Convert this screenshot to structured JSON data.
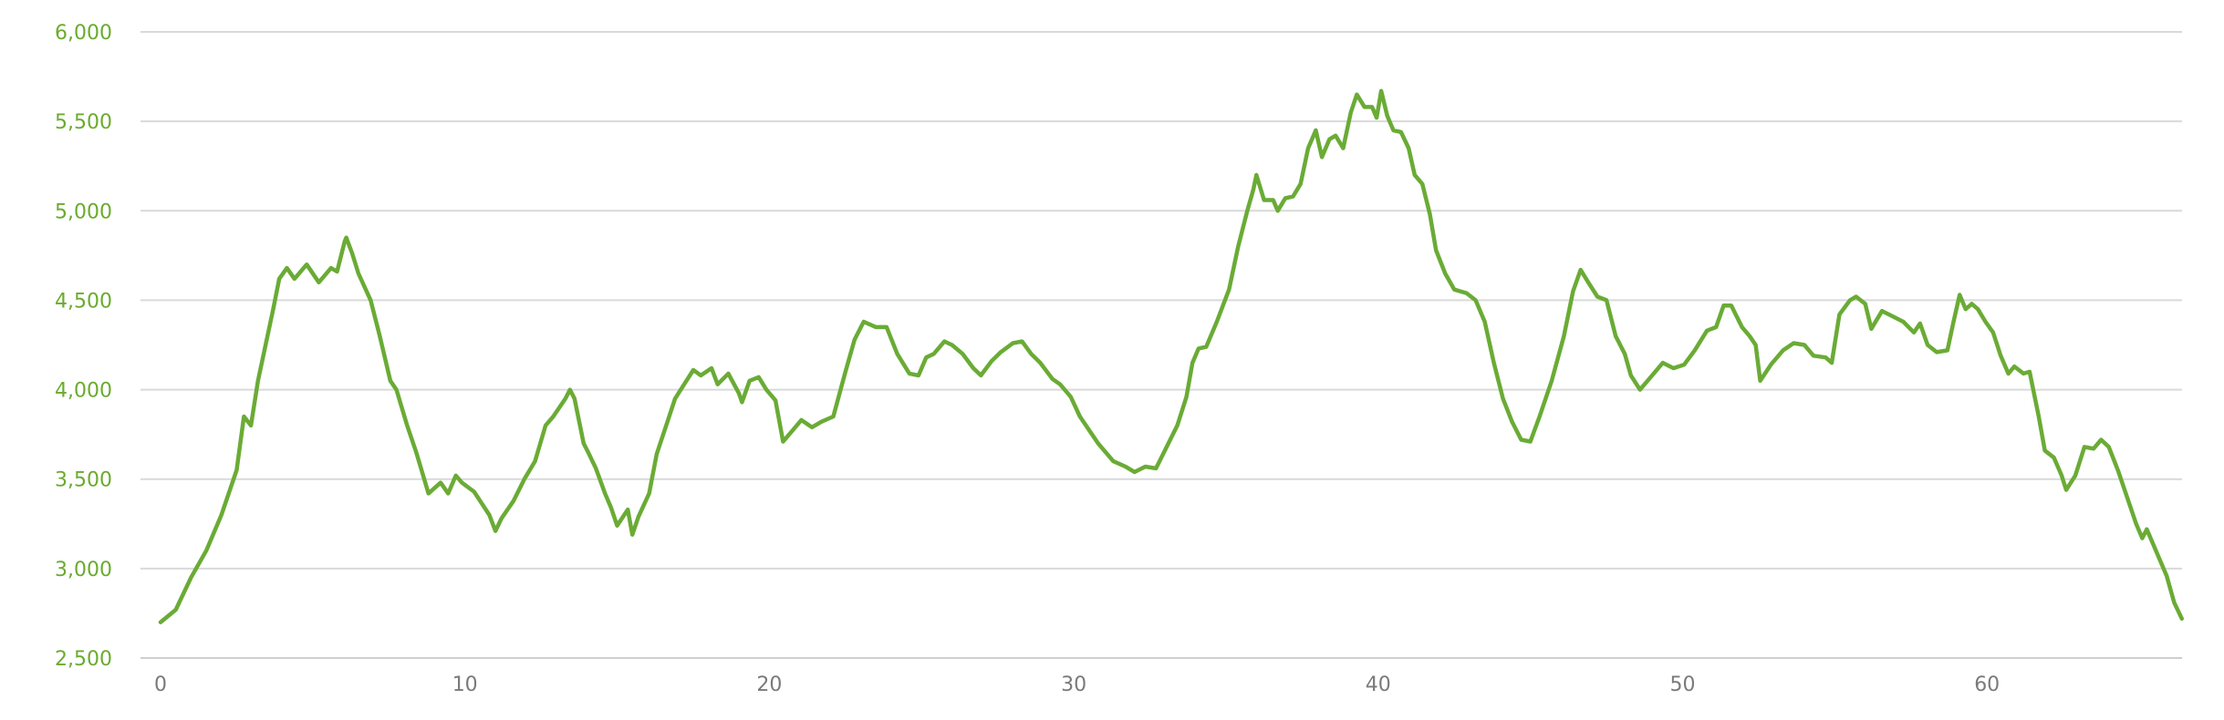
{
  "chart_data": {
    "type": "line",
    "title": "",
    "xlabel": "",
    "ylabel": "",
    "xlim": [
      0,
      66.4
    ],
    "ylim": [
      2500,
      6000
    ],
    "x_ticks": [
      0,
      10,
      20,
      30,
      40,
      50,
      60
    ],
    "x_tick_labels": [
      "0",
      "10",
      "20",
      "30",
      "40",
      "50",
      "60"
    ],
    "y_ticks": [
      2500,
      3000,
      3500,
      4000,
      4500,
      5000,
      5500,
      6000
    ],
    "y_tick_labels": [
      "2,500",
      "3,000",
      "3,500",
      "4,000",
      "4,500",
      "5,000",
      "5,500",
      "6,000"
    ],
    "grid": true,
    "legend": "none",
    "colors": {
      "line": "#6aab35",
      "y_labels": "#6aab2e",
      "x_labels": "#7a7a7a",
      "grid": "#d9d9d9"
    },
    "series": [
      {
        "x": [
          0,
          0.5,
          1,
          1.5,
          2,
          2.5,
          2.74,
          2.97,
          3.2,
          3.7,
          3.9,
          4.15,
          4.4,
          4.8,
          5.2,
          5.6,
          5.8,
          6.05,
          6.1,
          6.3,
          6.5,
          6.9,
          7.2,
          7.55,
          7.75,
          8.1,
          8.4,
          8.8,
          9.2,
          9.45,
          9.7,
          9.9,
          10.3,
          10.8,
          11,
          11.2,
          11.6,
          11.95,
          12.3,
          12.65,
          12.9,
          13.3,
          13.45,
          13.6,
          13.9,
          14.05,
          14.3,
          14.6,
          14.8,
          15,
          15.35,
          15.5,
          15.7,
          16.05,
          16.3,
          16.65,
          16.9,
          17.2,
          17.5,
          17.75,
          18.1,
          18.3,
          18.65,
          19,
          19.1,
          19.35,
          19.65,
          19.9,
          20.2,
          20.45,
          20.8,
          21.05,
          21.4,
          21.7,
          22.1,
          22.5,
          22.8,
          23.1,
          23.5,
          23.85,
          24.2,
          24.6,
          24.9,
          25.15,
          25.4,
          25.75,
          26,
          26.35,
          26.7,
          26.95,
          27.3,
          27.6,
          28,
          28.3,
          28.6,
          28.9,
          29.3,
          29.55,
          29.9,
          30.2,
          30.6,
          30.8,
          31.05,
          31.3,
          31.7,
          32,
          32.35,
          32.7,
          33.05,
          33.4,
          33.7,
          33.9,
          34.1,
          34.35,
          34.7,
          35.1,
          35.4,
          35.7,
          35.9,
          36,
          36.25,
          36.55,
          36.7,
          36.95,
          37.2,
          37.45,
          37.7,
          37.95,
          38.15,
          38.4,
          38.6,
          38.85,
          39.1,
          39.3,
          39.55,
          39.8,
          39.95,
          40.1,
          40.3,
          40.5,
          40.75,
          41,
          41.2,
          41.45,
          41.7,
          41.9,
          42.2,
          42.5,
          42.9,
          43.2,
          43.5,
          43.8,
          44.1,
          44.4,
          44.7,
          45,
          45.3,
          45.7,
          46.1,
          46.4,
          46.65,
          46.9,
          47.2,
          47.5,
          47.8,
          48.1,
          48.3,
          48.6,
          49,
          49.35,
          49.7,
          50.05,
          50.4,
          50.8,
          51.1,
          51.35,
          51.6,
          51.95,
          52.2,
          52.4,
          52.55,
          52.9,
          53.3,
          53.65,
          54,
          54.3,
          54.7,
          54.9,
          55.15,
          55.5,
          55.7,
          56,
          56.2,
          56.55,
          56.9,
          57.25,
          57.6,
          57.8,
          58.05,
          58.35,
          58.7,
          58.9,
          59.1,
          59.3,
          59.5,
          59.7,
          59.95,
          60.2,
          60.45,
          60.7,
          60.9,
          61.2,
          61.4,
          61.7,
          61.9,
          62.2,
          62.45,
          62.6,
          62.9,
          63.2,
          63.5,
          63.75,
          64,
          64.3,
          64.6,
          64.9,
          65.1,
          65.25,
          65.6,
          65.9,
          66.15,
          66.4
        ],
        "y": [
          2700,
          2770,
          2950,
          3100,
          3300,
          3550,
          3850,
          3800,
          4050,
          4450,
          4620,
          4680,
          4620,
          4700,
          4600,
          4680,
          4660,
          4830,
          4850,
          4760,
          4650,
          4500,
          4300,
          4050,
          4000,
          3800,
          3650,
          3420,
          3480,
          3420,
          3520,
          3480,
          3430,
          3300,
          3210,
          3280,
          3380,
          3500,
          3600,
          3800,
          3850,
          3950,
          4000,
          3950,
          3700,
          3650,
          3560,
          3420,
          3340,
          3240,
          3330,
          3190,
          3290,
          3420,
          3640,
          3820,
          3950,
          4030,
          4110,
          4080,
          4120,
          4030,
          4090,
          3980,
          3930,
          4050,
          4070,
          4000,
          3940,
          3710,
          3780,
          3830,
          3790,
          3820,
          3850,
          4100,
          4280,
          4380,
          4350,
          4350,
          4200,
          4090,
          4080,
          4180,
          4200,
          4270,
          4250,
          4200,
          4120,
          4080,
          4160,
          4210,
          4260,
          4270,
          4200,
          4150,
          4060,
          4030,
          3960,
          3850,
          3750,
          3700,
          3650,
          3600,
          3570,
          3540,
          3570,
          3560,
          3680,
          3800,
          3960,
          4150,
          4230,
          4240,
          4380,
          4560,
          4800,
          5000,
          5120,
          5200,
          5060,
          5060,
          5000,
          5070,
          5080,
          5150,
          5350,
          5450,
          5300,
          5400,
          5420,
          5350,
          5550,
          5650,
          5580,
          5580,
          5520,
          5670,
          5530,
          5450,
          5440,
          5350,
          5200,
          5150,
          4980,
          4780,
          4650,
          4560,
          4540,
          4500,
          4380,
          4150,
          3950,
          3820,
          3720,
          3710,
          3850,
          4050,
          4300,
          4550,
          4670,
          4600,
          4520,
          4500,
          4300,
          4200,
          4080,
          4000,
          4080,
          4150,
          4120,
          4140,
          4220,
          4330,
          4350,
          4470,
          4470,
          4350,
          4300,
          4250,
          4050,
          4140,
          4220,
          4260,
          4250,
          4190,
          4180,
          4150,
          4420,
          4500,
          4520,
          4480,
          4340,
          4440,
          4410,
          4380,
          4320,
          4370,
          4250,
          4210,
          4220,
          4380,
          4530,
          4450,
          4480,
          4450,
          4380,
          4320,
          4190,
          4090,
          4130,
          4090,
          4100,
          3850,
          3660,
          3620,
          3520,
          3440,
          3520,
          3680,
          3670,
          3720,
          3680,
          3550,
          3400,
          3250,
          3170,
          3220,
          3080,
          2960,
          2810,
          2720
        ]
      }
    ]
  }
}
